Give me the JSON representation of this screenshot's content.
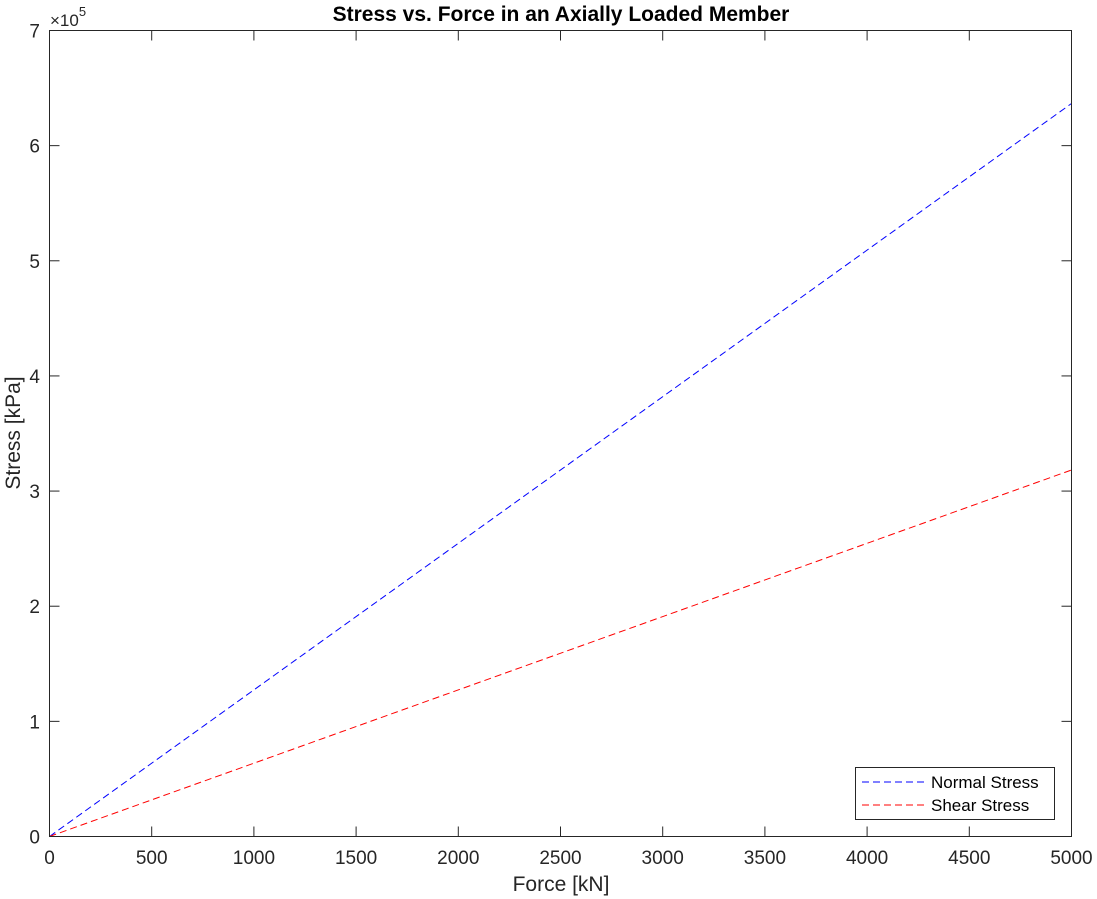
{
  "chart_data": {
    "type": "line",
    "title": "Stress vs. Force in an Axially Loaded Member",
    "xlabel": "Force [kN]",
    "ylabel": "Stress [kPa]",
    "xlim": [
      0,
      5000
    ],
    "ylim": [
      0,
      700000
    ],
    "x_ticks": [
      0,
      500,
      1000,
      1500,
      2000,
      2500,
      3000,
      3500,
      4000,
      4500,
      5000
    ],
    "x_tick_labels": [
      "0",
      "500",
      "1000",
      "1500",
      "2000",
      "2500",
      "3000",
      "3500",
      "4000",
      "4500",
      "5000"
    ],
    "y_ticks": [
      0,
      100000,
      200000,
      300000,
      400000,
      500000,
      600000,
      700000
    ],
    "y_tick_labels": [
      "0",
      "1",
      "2",
      "3",
      "4",
      "5",
      "6",
      "7"
    ],
    "y_exponent": {
      "times": "×10",
      "power": "5"
    },
    "grid": false,
    "legend_position": "bottom-right",
    "series": [
      {
        "name": "Normal Stress",
        "color": "#0000ff",
        "line_style": "dashed",
        "x": [
          0,
          5000
        ],
        "y": [
          0,
          636600
        ]
      },
      {
        "name": "Shear Stress",
        "color": "#ff0000",
        "line_style": "dashed",
        "x": [
          0,
          5000
        ],
        "y": [
          0,
          318300
        ]
      }
    ]
  }
}
